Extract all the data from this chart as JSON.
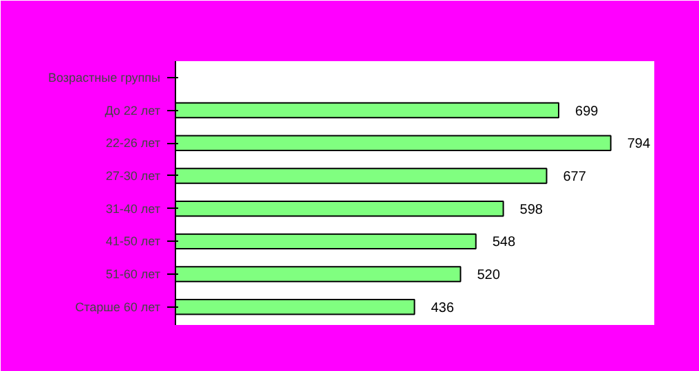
{
  "chart_data": {
    "type": "bar",
    "orientation": "horizontal",
    "ylabel": "Возрастные группы",
    "categories": [
      "До 22 лет",
      "22-26 лет",
      "27-30 лет",
      "31-40 лет",
      "41-50 лет",
      "51-60 лет",
      "Старше 60 лет"
    ],
    "values": [
      699,
      794,
      677,
      598,
      548,
      520,
      436
    ],
    "color": "#80ff80",
    "data_labels": true,
    "grid": false
  }
}
